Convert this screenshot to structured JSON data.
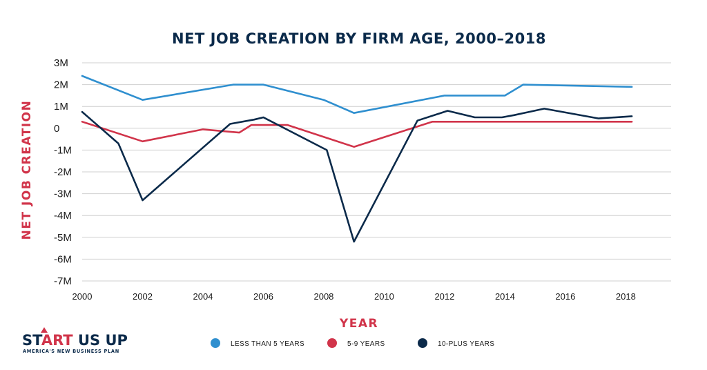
{
  "colors": {
    "background": "#ffffff",
    "grid": "#cfcfcf",
    "title": "#0b2a4a",
    "axis_title": "#d1344a",
    "series": [
      "#2f8fcf",
      "#d1344a",
      "#0b2a4a"
    ]
  },
  "logo": {
    "part1": "ST",
    "part2": "ART",
    "part3": " US UP",
    "tagline": "AMERICA'S NEW BUSINESS PLAN"
  },
  "chart_data": {
    "type": "line",
    "title": "NET JOB CREATION BY FIRM AGE, 2000–2018",
    "xlabel": "YEAR",
    "ylabel": "NET JOB CREATION",
    "xlim": [
      2000,
      2019.5
    ],
    "ylim": [
      -7,
      3
    ],
    "x_ticks": [
      2000,
      2002,
      2004,
      2006,
      2008,
      2010,
      2012,
      2014,
      2016,
      2018
    ],
    "y_ticks": [
      {
        "value": 3,
        "label": "3M"
      },
      {
        "value": 2,
        "label": "2M"
      },
      {
        "value": 1,
        "label": "1M"
      },
      {
        "value": 0,
        "label": "0"
      },
      {
        "value": -1,
        "label": "-1M"
      },
      {
        "value": -2,
        "label": "-2M"
      },
      {
        "value": -3,
        "label": "-3M"
      },
      {
        "value": -4,
        "label": "-4M"
      },
      {
        "value": -5,
        "label": "-5M"
      },
      {
        "value": -6,
        "label": "-6M"
      },
      {
        "value": -7,
        "label": "-7M"
      }
    ],
    "grid": true,
    "legend_position": "bottom",
    "series": [
      {
        "name": "LESS THAN 5 YEARS",
        "color": "#2f8fcf",
        "points": [
          [
            2000,
            2.4
          ],
          [
            2002,
            1.3
          ],
          [
            2005,
            2.0
          ],
          [
            2006,
            2.0
          ],
          [
            2008,
            1.3
          ],
          [
            2009,
            0.7
          ],
          [
            2012,
            1.5
          ],
          [
            2014,
            1.5
          ],
          [
            2014.6,
            2.0
          ],
          [
            2018.2,
            1.9
          ]
        ]
      },
      {
        "name": "5-9 YEARS",
        "color": "#d1344a",
        "points": [
          [
            2000,
            0.3
          ],
          [
            2002,
            -0.6
          ],
          [
            2004,
            -0.05
          ],
          [
            2005.2,
            -0.2
          ],
          [
            2005.6,
            0.15
          ],
          [
            2006.8,
            0.15
          ],
          [
            2009,
            -0.85
          ],
          [
            2011.6,
            0.3
          ],
          [
            2018.2,
            0.3
          ]
        ]
      },
      {
        "name": "10-PLUS YEARS",
        "color": "#0b2a4a",
        "points": [
          [
            2000,
            0.75
          ],
          [
            2001.2,
            -0.7
          ],
          [
            2002,
            -3.3
          ],
          [
            2004.9,
            0.2
          ],
          [
            2005.7,
            0.4
          ],
          [
            2006,
            0.5
          ],
          [
            2008.1,
            -1.0
          ],
          [
            2009,
            -5.2
          ],
          [
            2011.1,
            0.35
          ],
          [
            2012.1,
            0.8
          ],
          [
            2013,
            0.5
          ],
          [
            2013.9,
            0.5
          ],
          [
            2014.3,
            0.6
          ],
          [
            2015.3,
            0.9
          ],
          [
            2017.1,
            0.45
          ],
          [
            2018.2,
            0.55
          ]
        ]
      }
    ]
  }
}
